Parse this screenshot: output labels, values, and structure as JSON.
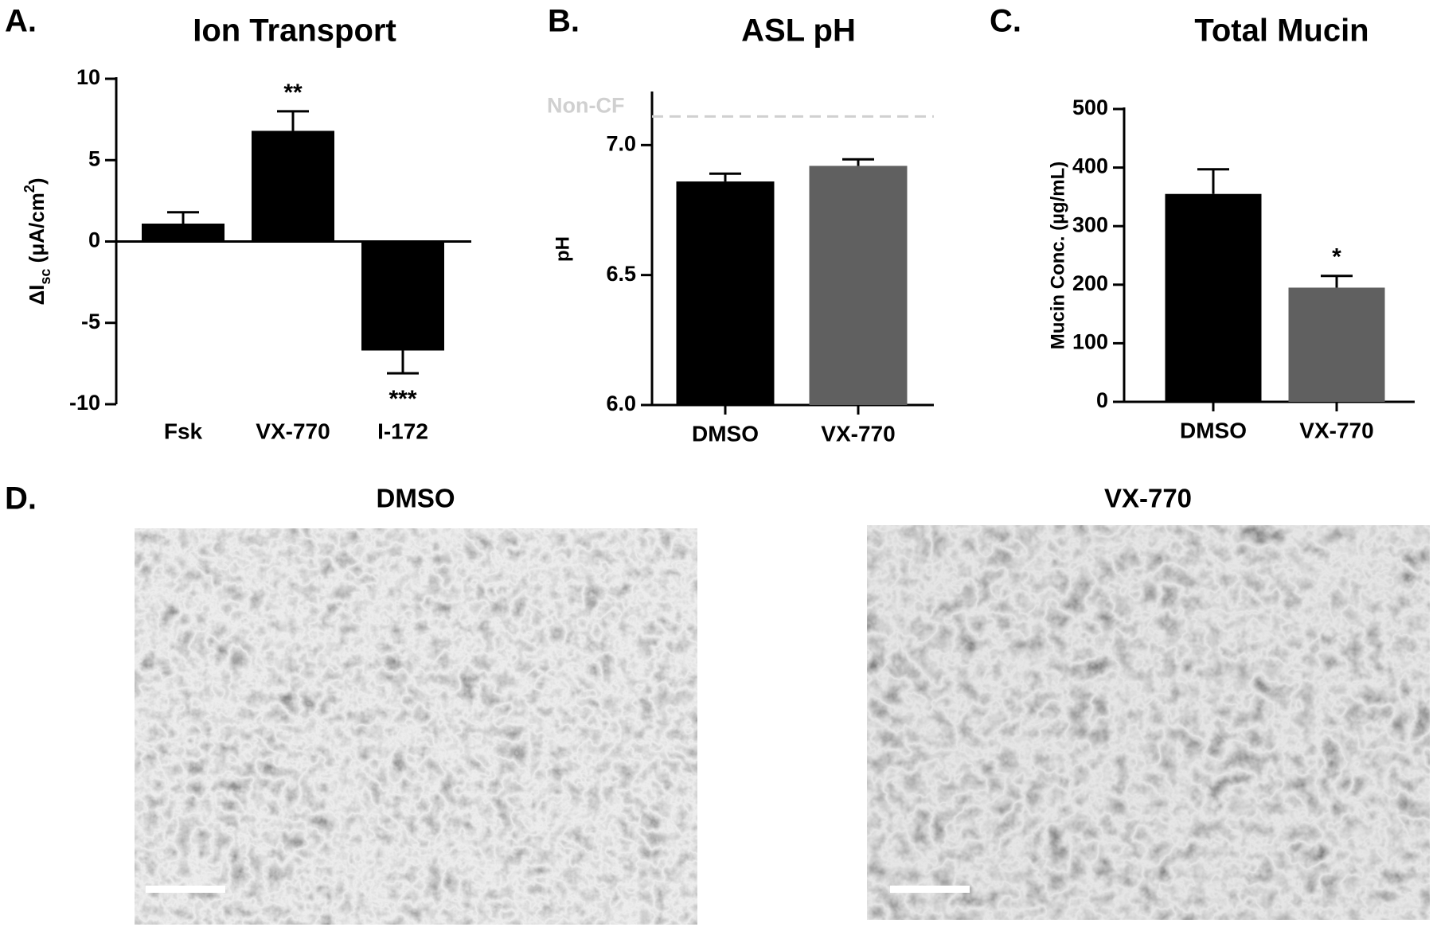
{
  "chart_data": [
    {
      "type": "bar",
      "panel_label": "A.",
      "title": "Ion Transport",
      "y_label_parts": [
        "ΔI",
        "sc",
        " (μA/cm",
        "2",
        ")"
      ],
      "categories": [
        "Fsk",
        "VX-770",
        "I-172"
      ],
      "series": [
        {
          "colors": [
            "#000000",
            "#000000",
            "#000000"
          ],
          "values": [
            1.1,
            6.8,
            -6.7
          ],
          "errors": [
            0.7,
            1.2,
            1.4
          ]
        }
      ],
      "annotations": [
        null,
        "**",
        "***"
      ],
      "ylim": [
        -10,
        10
      ],
      "yticks": [
        -10,
        -5,
        0,
        5,
        10
      ]
    },
    {
      "type": "bar",
      "panel_label": "B.",
      "title": "ASL pH",
      "y_label": "pH",
      "categories": [
        "DMSO",
        "VX-770"
      ],
      "series": [
        {
          "colors": [
            "#000000",
            "#606060"
          ],
          "values": [
            6.86,
            6.92
          ],
          "errors": [
            0.03,
            0.025
          ]
        }
      ],
      "reference_line": {
        "label": "Non-CF",
        "value": 7.11,
        "color": "#d0d0d0"
      },
      "ylim": [
        6.0,
        7.2
      ],
      "yticks": [
        {
          "value": 6,
          "label": "6.0"
        },
        6.5,
        {
          "value": 7,
          "label": "7.0"
        }
      ]
    },
    {
      "type": "bar",
      "panel_label": "C.",
      "title": "Total Mucin",
      "y_label": "Mucin Conc. (µg/mL)",
      "categories": [
        "DMSO",
        "VX-770"
      ],
      "series": [
        {
          "colors": [
            "#000000",
            "#606060"
          ],
          "values": [
            355,
            195
          ],
          "errors": [
            42,
            20
          ]
        }
      ],
      "annotations": [
        null,
        "*"
      ],
      "ylim": [
        0,
        500
      ],
      "yticks": [
        0,
        100,
        200,
        300,
        400,
        500
      ]
    }
  ],
  "panel_d": {
    "label": "D.",
    "titles": [
      "DMSO",
      "VX-770"
    ]
  }
}
